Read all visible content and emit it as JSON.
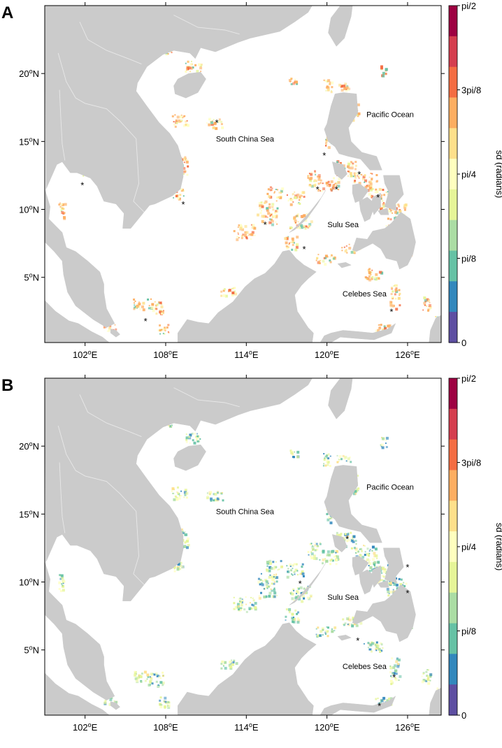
{
  "panels": [
    {
      "letter": "A",
      "labels": {
        "south_china_sea": "South China Sea",
        "pacific_ocean": "Pacific Ocean",
        "sulu_sea": "Sulu Sea",
        "celebes_sea": "Celebes Sea"
      },
      "asterisk": "*",
      "hotspot": "orange"
    },
    {
      "letter": "B",
      "labels": {
        "south_china_sea": "South China Sea",
        "pacific_ocean": "Pacific Ocean",
        "sulu_sea": "Sulu Sea",
        "celebes_sea": "Celebes Sea"
      },
      "asterisk": "*",
      "hotspot": "green"
    }
  ],
  "axes": {
    "lon_ticks": [
      "102°E",
      "108°E",
      "114°E",
      "120°E",
      "126°E"
    ],
    "lat_ticks": [
      "20°N",
      "15°N",
      "10°N",
      "5°N"
    ]
  },
  "colorbar": {
    "title": "sd (radians)",
    "ticks": [
      "pi/2",
      "3pi/8",
      "pi/4",
      "pi/8",
      "0"
    ],
    "colors": [
      "#9e0142",
      "#d53e4f",
      "#f46d43",
      "#fdae61",
      "#fee08b",
      "#ffffbf",
      "#e6f598",
      "#abdda4",
      "#66c2a5",
      "#3288bd",
      "#5e4fa2"
    ]
  },
  "colors": {
    "land": "#cbcbcb",
    "sea": "#ffffff",
    "river": "#e8e8e8"
  }
}
